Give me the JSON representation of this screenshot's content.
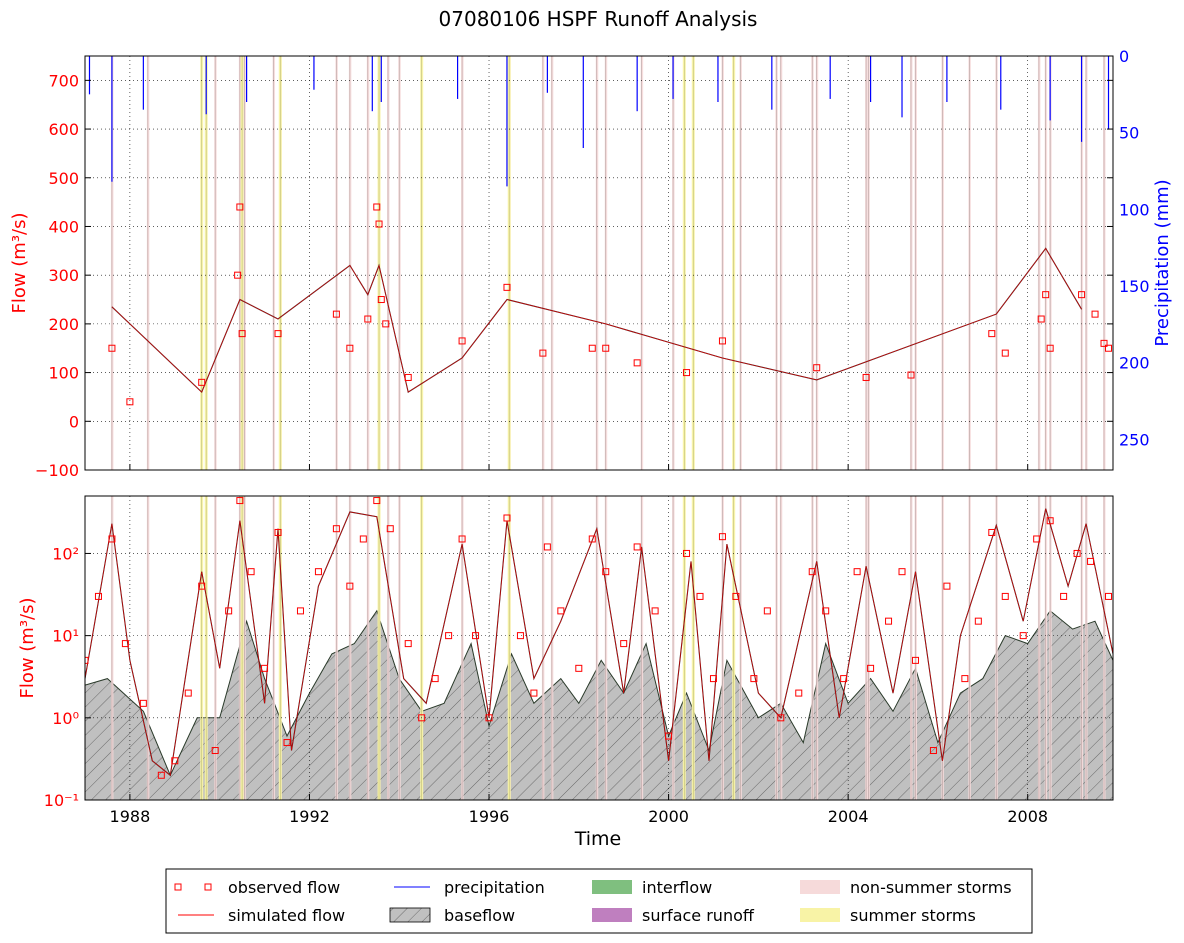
{
  "title": "07080106 HSPF Runoff Analysis",
  "colors": {
    "observed": "#ff0000",
    "simulated": "#ff0000",
    "precip": "#0000ff",
    "baseflow": "#808080",
    "interflow": "#7fbf7f",
    "surface": "#bf7fbf",
    "nonsummer": "#f6dada",
    "summer": "#f8f3a6",
    "axis_left": "#ff0000",
    "axis_right": "#0000ff"
  },
  "chart_data": [
    {
      "type": "line",
      "panel": "top",
      "xlabel": "",
      "ylabel": "Flow (m³/s)",
      "y2label": "Precipitation (mm)",
      "xlim": [
        1987.0,
        2009.9
      ],
      "ylim": [
        -100,
        750
      ],
      "y2lim": [
        270,
        0
      ],
      "y_ticks": [
        "−100",
        "0",
        "100",
        "200",
        "300",
        "400",
        "500",
        "600",
        "700"
      ],
      "y_tick_values": [
        -100,
        0,
        100,
        200,
        300,
        400,
        500,
        600,
        700
      ],
      "y2_ticks": [
        "0",
        "50",
        "100",
        "150",
        "200",
        "250"
      ],
      "y2_tick_values": [
        0,
        50,
        100,
        150,
        200,
        250
      ],
      "grid": true,
      "series": [
        {
          "name": "observed flow",
          "style": "square-markers",
          "x": [
            1987.6,
            1988.0,
            1989.6,
            1990.4,
            1990.45,
            1990.5,
            1991.3,
            1992.6,
            1992.9,
            1993.3,
            1993.5,
            1993.55,
            1993.6,
            1993.7,
            1994.2,
            1995.4,
            1996.4,
            1997.2,
            1998.3,
            1998.6,
            1999.3,
            2000.4,
            2001.2,
            2003.3,
            2004.4,
            2005.4,
            2007.2,
            2007.5,
            2008.3,
            2008.4,
            2008.5,
            2009.2,
            2009.5,
            2009.7,
            2009.8
          ],
          "y": [
            150,
            40,
            80,
            300,
            440,
            180,
            180,
            220,
            150,
            210,
            440,
            405,
            250,
            200,
            90,
            165,
            275,
            140,
            150,
            150,
            120,
            100,
            165,
            110,
            90,
            95,
            180,
            140,
            210,
            260,
            150,
            260,
            220,
            160,
            150
          ]
        },
        {
          "name": "simulated flow",
          "style": "line",
          "x": [
            1987.6,
            1989.6,
            1990.45,
            1991.3,
            1992.9,
            1993.3,
            1993.55,
            1994.2,
            1995.4,
            1996.4,
            1998.6,
            2001.2,
            2003.3,
            2007.3,
            2008.4,
            2009.2
          ],
          "y": [
            235,
            60,
            250,
            210,
            320,
            260,
            320,
            60,
            130,
            250,
            200,
            130,
            85,
            220,
            355,
            230
          ]
        },
        {
          "name": "precipitation",
          "style": "bars-from-top",
          "x": [
            1987.1,
            1987.6,
            1988.3,
            1989.7,
            1990.6,
            1992.1,
            1993.4,
            1993.6,
            1995.3,
            1996.4,
            1997.3,
            1998.1,
            1999.3,
            2000.1,
            2001.1,
            2002.3,
            2003.6,
            2004.5,
            2005.2,
            2006.2,
            2007.4,
            2008.5,
            2009.2,
            2009.8
          ],
          "y": [
            25,
            82,
            35,
            38,
            30,
            22,
            36,
            30,
            28,
            85,
            24,
            60,
            36,
            28,
            30,
            35,
            28,
            30,
            40,
            30,
            35,
            42,
            56,
            48
          ]
        }
      ]
    },
    {
      "type": "area",
      "panel": "bottom",
      "xlabel": "Time",
      "ylabel": "Flow (m³/s)",
      "xlim": [
        1987.0,
        2009.9
      ],
      "ylim": [
        0.1,
        500
      ],
      "yscale": "log",
      "x_ticks": [
        "1988",
        "1992",
        "1996",
        "2000",
        "2004",
        "2008"
      ],
      "x_tick_values": [
        1988,
        1992,
        1996,
        2000,
        2004,
        2008
      ],
      "y_ticks": [
        "10⁻¹",
        "10⁰",
        "10¹",
        "10²"
      ],
      "y_tick_values": [
        0.1,
        1,
        10,
        100
      ],
      "grid": true,
      "series": [
        {
          "name": "observed flow",
          "style": "square-markers",
          "x": [
            1987.0,
            1987.3,
            1987.6,
            1987.9,
            1988.3,
            1988.7,
            1989.0,
            1989.3,
            1989.6,
            1989.9,
            1990.2,
            1990.45,
            1990.7,
            1991.0,
            1991.3,
            1991.5,
            1991.8,
            1992.2,
            1992.6,
            1992.9,
            1993.2,
            1993.5,
            1993.8,
            1994.2,
            1994.5,
            1994.8,
            1995.1,
            1995.4,
            1995.7,
            1996.0,
            1996.4,
            1996.7,
            1997.0,
            1997.3,
            1997.6,
            1998.0,
            1998.3,
            1998.6,
            1999.0,
            1999.3,
            1999.7,
            2000.0,
            2000.4,
            2000.7,
            2001.0,
            2001.2,
            2001.5,
            2001.9,
            2002.2,
            2002.5,
            2002.9,
            2003.2,
            2003.5,
            2003.9,
            2004.2,
            2004.5,
            2004.9,
            2005.2,
            2005.5,
            2005.9,
            2006.2,
            2006.6,
            2006.9,
            2007.2,
            2007.5,
            2007.9,
            2008.2,
            2008.5,
            2008.8,
            2009.1,
            2009.4,
            2009.8
          ],
          "y": [
            5,
            30,
            150,
            8,
            1.5,
            0.2,
            0.3,
            2,
            40,
            0.4,
            20,
            440,
            60,
            4,
            180,
            0.5,
            20,
            60,
            200,
            40,
            150,
            440,
            200,
            8,
            1,
            3,
            10,
            150,
            10,
            1,
            270,
            10,
            2,
            120,
            20,
            4,
            150,
            60,
            8,
            120,
            20,
            0.6,
            100,
            30,
            3,
            160,
            30,
            3,
            20,
            1,
            2,
            60,
            20,
            3,
            60,
            4,
            15,
            60,
            5,
            0.4,
            40,
            3,
            15,
            180,
            30,
            10,
            150,
            250,
            30,
            100,
            80,
            30
          ]
        },
        {
          "name": "simulated flow",
          "style": "line",
          "x": [
            1987.0,
            1987.6,
            1988.0,
            1988.5,
            1988.9,
            1989.6,
            1990.0,
            1990.45,
            1991.0,
            1991.3,
            1991.6,
            1992.2,
            1992.9,
            1993.5,
            1994.1,
            1994.6,
            1995.4,
            1996.0,
            1996.4,
            1997.0,
            1997.6,
            1998.4,
            1999.0,
            1999.4,
            2000.0,
            2000.5,
            2000.9,
            2001.3,
            2002.0,
            2002.5,
            2003.3,
            2003.8,
            2004.4,
            2005.0,
            2005.5,
            2006.1,
            2006.5,
            2007.3,
            2007.9,
            2008.4,
            2008.9,
            2009.3,
            2009.9
          ],
          "y": [
            3,
            230,
            5,
            0.3,
            0.2,
            60,
            4,
            250,
            1.5,
            200,
            0.4,
            40,
            320,
            280,
            3,
            1.5,
            130,
            1,
            250,
            3,
            15,
            200,
            2,
            120,
            0.3,
            80,
            0.3,
            130,
            2,
            1,
            80,
            1,
            70,
            2,
            60,
            0.3,
            10,
            220,
            15,
            350,
            40,
            230,
            6
          ]
        },
        {
          "name": "baseflow",
          "style": "hatched-area",
          "x": [
            1987.0,
            1987.5,
            1988.3,
            1988.9,
            1989.5,
            1990.0,
            1990.6,
            1991.0,
            1991.5,
            1992.0,
            1992.5,
            1993.0,
            1993.5,
            1994.0,
            1994.5,
            1995.0,
            1995.6,
            1996.0,
            1996.5,
            1997.0,
            1997.6,
            1998.0,
            1998.5,
            1999.0,
            1999.5,
            2000.0,
            2000.4,
            2000.9,
            2001.3,
            2002.0,
            2002.5,
            2003.0,
            2003.5,
            2004.0,
            2004.5,
            2005.0,
            2005.5,
            2006.0,
            2006.5,
            2007.0,
            2007.5,
            2008.0,
            2008.5,
            2009.0,
            2009.5,
            2009.9
          ],
          "y": [
            2.5,
            3,
            1.2,
            0.2,
            1,
            1,
            15,
            3,
            0.6,
            2,
            6,
            8,
            20,
            3,
            1.2,
            1.5,
            8,
            0.8,
            6,
            1.5,
            3,
            1.5,
            5,
            2,
            8,
            0.6,
            2,
            0.4,
            5,
            1,
            1.5,
            0.5,
            8,
            1.5,
            3,
            1.2,
            4,
            0.5,
            2,
            3,
            10,
            8,
            20,
            12,
            15,
            5
          ]
        }
      ]
    }
  ],
  "storm_events": {
    "nonsummer": [
      1987.6,
      1988.4,
      1989.9,
      1990.45,
      1990.55,
      1991.2,
      1991.35,
      1992.6,
      1992.9,
      1993.3,
      1993.55,
      1993.75,
      1994.0,
      1995.4,
      1996.45,
      1997.2,
      1997.4,
      1998.4,
      1998.6,
      1999.4,
      2000.1,
      2001.2,
      2001.6,
      2002.4,
      2002.5,
      2003.2,
      2003.3,
      2004.4,
      2004.45,
      2005.4,
      2005.5,
      2006.1,
      2006.7,
      2007.3,
      2008.25,
      2008.4,
      2008.5,
      2009.2,
      2009.3,
      2009.7
    ],
    "summer": [
      1989.6,
      1989.7,
      1990.5,
      1991.35,
      1993.55,
      1994.5,
      1996.45,
      2000.35,
      2000.55,
      2001.45
    ]
  },
  "legend": {
    "placement": "bottom-center",
    "entries": [
      {
        "label": "observed flow",
        "key": "observed",
        "icon": "marker-icon"
      },
      {
        "label": "simulated flow",
        "key": "simulated",
        "icon": "line-icon"
      },
      {
        "label": "precipitation",
        "key": "precip",
        "icon": "line-icon"
      },
      {
        "label": "baseflow",
        "key": "baseflow",
        "icon": "hatch-icon"
      },
      {
        "label": "interflow",
        "key": "interflow",
        "icon": "patch-icon"
      },
      {
        "label": "surface runoff",
        "key": "surface",
        "icon": "patch-icon"
      },
      {
        "label": "non-summer storms",
        "key": "nonsummer",
        "icon": "patch-icon"
      },
      {
        "label": "summer storms",
        "key": "summer",
        "icon": "patch-icon"
      }
    ]
  }
}
